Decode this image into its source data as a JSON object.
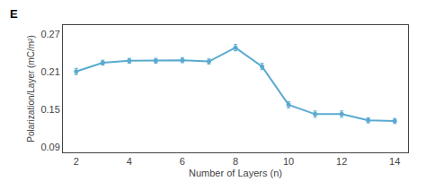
{
  "chart_data": {
    "type": "line",
    "x": [
      2,
      3,
      4,
      5,
      6,
      7,
      8,
      9,
      10,
      11,
      12,
      13,
      14
    ],
    "values": [
      0.211,
      0.225,
      0.228,
      0.228,
      0.229,
      0.227,
      0.249,
      0.219,
      0.158,
      0.143,
      0.143,
      0.133,
      0.132
    ],
    "yerr": [
      0.005,
      0.004,
      0.004,
      0.004,
      0.004,
      0.004,
      0.005,
      0.005,
      0.005,
      0.005,
      0.005,
      0.004,
      0.004
    ],
    "color": "#5aaad0",
    "marker": "circle",
    "x_label": "Number of Layers (n)",
    "y_label": "Polarization/Layer (mC/m²)",
    "xlim": [
      1.5,
      14.5
    ],
    "xticks": [
      2,
      4,
      6,
      8,
      10,
      12,
      14
    ],
    "ylim": [
      0.082,
      0.285
    ],
    "yticks": [
      0.09,
      0.15,
      0.21,
      0.27
    ],
    "grid": false,
    "annotations": [
      "E"
    ]
  }
}
